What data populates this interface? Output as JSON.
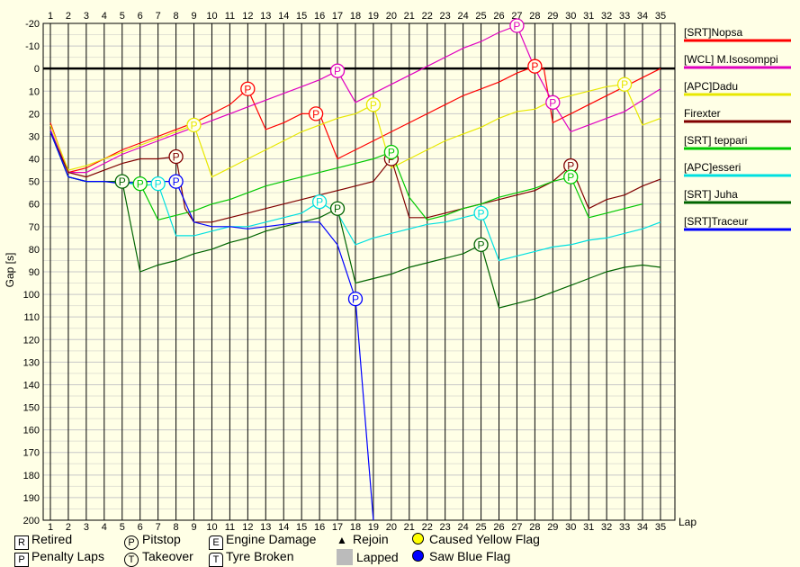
{
  "chart_data": {
    "type": "line",
    "xlabel": "Lap",
    "ylabel": "Gap [s]",
    "x_ticks": [
      1,
      2,
      3,
      4,
      5,
      6,
      7,
      8,
      9,
      10,
      11,
      12,
      13,
      14,
      15,
      16,
      17,
      18,
      19,
      20,
      21,
      22,
      23,
      24,
      25,
      26,
      27,
      28,
      29,
      30,
      31,
      32,
      33,
      34,
      35
    ],
    "y_ticks": [
      -20,
      -10,
      0,
      10,
      20,
      30,
      40,
      50,
      60,
      70,
      80,
      90,
      100,
      110,
      120,
      130,
      140,
      150,
      160,
      170,
      180,
      190,
      200
    ],
    "xlim": [
      0.95,
      35.5
    ],
    "ylim": [
      -20,
      200
    ],
    "y_inverted": true,
    "grid": true,
    "legend_position": "right",
    "reference_line": 0,
    "series": [
      {
        "name": "[SRT]Nopsa",
        "color": "#ff0000",
        "points": [
          [
            1,
            24
          ],
          [
            2,
            46
          ],
          [
            3,
            44
          ],
          [
            4,
            40
          ],
          [
            5,
            36
          ],
          [
            6,
            33
          ],
          [
            7,
            30
          ],
          [
            8,
            27
          ],
          [
            9,
            24
          ],
          [
            10,
            20
          ],
          [
            11,
            16
          ],
          [
            12,
            9
          ],
          [
            13,
            27
          ],
          [
            14,
            24
          ],
          [
            15,
            20
          ],
          [
            16,
            20
          ],
          [
            17,
            40
          ],
          [
            18,
            36
          ],
          [
            19,
            32
          ],
          [
            20,
            28
          ],
          [
            21,
            24
          ],
          [
            22,
            20
          ],
          [
            23,
            16
          ],
          [
            24,
            12
          ],
          [
            25,
            9
          ],
          [
            26,
            6
          ],
          [
            27,
            2
          ],
          [
            28,
            -1
          ],
          [
            28.5,
            0
          ],
          [
            29,
            24
          ],
          [
            30,
            20
          ],
          [
            31,
            16
          ],
          [
            32,
            12
          ],
          [
            33,
            8
          ],
          [
            34,
            4
          ],
          [
            35,
            0
          ]
        ],
        "pitstops": [
          12,
          15.8,
          28
        ]
      },
      {
        "name": "[WCL] M.Isosomppi",
        "color": "#e000c0",
        "points": [
          [
            1,
            27
          ],
          [
            2,
            46
          ],
          [
            3,
            46
          ],
          [
            4,
            42
          ],
          [
            5,
            38
          ],
          [
            6,
            35
          ],
          [
            7,
            32
          ],
          [
            8,
            29
          ],
          [
            9,
            26
          ],
          [
            10,
            23
          ],
          [
            11,
            20
          ],
          [
            12,
            17
          ],
          [
            13,
            14
          ],
          [
            14,
            11
          ],
          [
            15,
            8
          ],
          [
            16,
            5
          ],
          [
            17,
            1
          ],
          [
            18,
            15
          ],
          [
            19,
            11
          ],
          [
            20,
            7
          ],
          [
            21,
            3
          ],
          [
            22,
            -1
          ],
          [
            23,
            -5
          ],
          [
            24,
            -9
          ],
          [
            25,
            -12
          ],
          [
            26,
            -16
          ],
          [
            27,
            -19
          ],
          [
            28,
            0
          ],
          [
            29,
            15
          ],
          [
            30,
            28
          ],
          [
            31,
            25
          ],
          [
            32,
            22
          ],
          [
            33,
            19
          ],
          [
            34,
            14
          ],
          [
            35,
            9
          ]
        ],
        "pitstops": [
          17,
          27,
          29
        ]
      },
      {
        "name": "[APC]Dadu",
        "color": "#e8e800",
        "points": [
          [
            1,
            25
          ],
          [
            2,
            45
          ],
          [
            3,
            43
          ],
          [
            4,
            40
          ],
          [
            5,
            37
          ],
          [
            6,
            34
          ],
          [
            7,
            31
          ],
          [
            8,
            28
          ],
          [
            9,
            25
          ],
          [
            10,
            48
          ],
          [
            11,
            44
          ],
          [
            12,
            40
          ],
          [
            13,
            36
          ],
          [
            14,
            32
          ],
          [
            15,
            28
          ],
          [
            16,
            25
          ],
          [
            17,
            22
          ],
          [
            18,
            20
          ],
          [
            19,
            16
          ],
          [
            20,
            44
          ],
          [
            21,
            40
          ],
          [
            22,
            36
          ],
          [
            23,
            32
          ],
          [
            24,
            29
          ],
          [
            25,
            26
          ],
          [
            26,
            22
          ],
          [
            27,
            19
          ],
          [
            28,
            18
          ],
          [
            29,
            14
          ],
          [
            30,
            12
          ],
          [
            31,
            10
          ],
          [
            32,
            8
          ],
          [
            33,
            7
          ],
          [
            34,
            25
          ],
          [
            35,
            22
          ]
        ],
        "pitstops": [
          9,
          19,
          33
        ]
      },
      {
        "name": "Firexter",
        "color": "#800000",
        "points": [
          [
            1,
            28
          ],
          [
            2,
            46
          ],
          [
            3,
            48
          ],
          [
            4,
            45
          ],
          [
            5,
            42
          ],
          [
            6,
            40
          ],
          [
            7,
            40
          ],
          [
            8,
            39
          ],
          [
            8.5,
            62
          ],
          [
            9,
            68
          ],
          [
            10,
            68
          ],
          [
            11,
            66
          ],
          [
            12,
            64
          ],
          [
            13,
            62
          ],
          [
            14,
            60
          ],
          [
            15,
            58
          ],
          [
            16,
            56
          ],
          [
            17,
            54
          ],
          [
            18,
            52
          ],
          [
            19,
            50
          ],
          [
            20,
            40
          ],
          [
            21,
            66
          ],
          [
            22,
            66
          ],
          [
            23,
            64
          ],
          [
            24,
            62
          ],
          [
            25,
            60
          ],
          [
            26,
            58
          ],
          [
            27,
            56
          ],
          [
            28,
            54
          ],
          [
            29,
            50
          ],
          [
            30,
            43
          ],
          [
            31,
            62
          ],
          [
            32,
            58
          ],
          [
            33,
            56
          ],
          [
            34,
            52
          ],
          [
            35,
            49
          ]
        ],
        "pitstops": [
          8,
          20,
          30
        ]
      },
      {
        "name": "[SRT] teppari",
        "color": "#00c800",
        "points": [
          [
            1,
            28
          ],
          [
            2,
            48
          ],
          [
            3,
            50
          ],
          [
            4,
            50
          ],
          [
            5,
            50
          ],
          [
            6,
            51
          ],
          [
            7,
            67
          ],
          [
            8,
            65
          ],
          [
            9,
            63
          ],
          [
            10,
            60
          ],
          [
            11,
            58
          ],
          [
            12,
            55
          ],
          [
            13,
            52
          ],
          [
            14,
            50
          ],
          [
            15,
            48
          ],
          [
            16,
            46
          ],
          [
            17,
            44
          ],
          [
            18,
            42
          ],
          [
            19,
            40
          ],
          [
            20,
            37
          ],
          [
            21,
            57
          ],
          [
            22,
            67
          ],
          [
            23,
            65
          ],
          [
            24,
            62
          ],
          [
            25,
            60
          ],
          [
            26,
            57
          ],
          [
            27,
            55
          ],
          [
            28,
            53
          ],
          [
            29,
            50
          ],
          [
            30,
            48
          ],
          [
            31,
            66
          ],
          [
            32,
            64
          ],
          [
            33,
            62
          ],
          [
            34,
            60
          ]
        ],
        "pitstops": [
          6,
          20,
          30
        ]
      },
      {
        "name": "[APC]esseri",
        "color": "#00e0e0",
        "points": [
          [
            1,
            28
          ],
          [
            2,
            48
          ],
          [
            3,
            50
          ],
          [
            4,
            50
          ],
          [
            5,
            50
          ],
          [
            6,
            52
          ],
          [
            7,
            51
          ],
          [
            8,
            74
          ],
          [
            9,
            74
          ],
          [
            10,
            72
          ],
          [
            11,
            70
          ],
          [
            12,
            70
          ],
          [
            13,
            68
          ],
          [
            14,
            66
          ],
          [
            15,
            64
          ],
          [
            16,
            59
          ],
          [
            17,
            64
          ],
          [
            18,
            78
          ],
          [
            19,
            75
          ],
          [
            20,
            73
          ],
          [
            21,
            71
          ],
          [
            22,
            69
          ],
          [
            23,
            68
          ],
          [
            24,
            66
          ],
          [
            25,
            64
          ],
          [
            26,
            85
          ],
          [
            27,
            83
          ],
          [
            28,
            81
          ],
          [
            29,
            79
          ],
          [
            30,
            78
          ],
          [
            31,
            76
          ],
          [
            32,
            75
          ],
          [
            33,
            73
          ],
          [
            34,
            71
          ],
          [
            35,
            68
          ]
        ],
        "pitstops": [
          7,
          16,
          25
        ]
      },
      {
        "name": "[SRT] Juha",
        "color": "#006400",
        "points": [
          [
            1,
            28
          ],
          [
            2,
            48
          ],
          [
            3,
            50
          ],
          [
            4,
            50
          ],
          [
            5,
            50
          ],
          [
            6,
            90
          ],
          [
            7,
            87
          ],
          [
            8,
            85
          ],
          [
            9,
            82
          ],
          [
            10,
            80
          ],
          [
            11,
            77
          ],
          [
            12,
            75
          ],
          [
            13,
            72
          ],
          [
            14,
            70
          ],
          [
            15,
            68
          ],
          [
            16,
            66
          ],
          [
            17,
            62
          ],
          [
            18,
            95
          ],
          [
            19,
            93
          ],
          [
            20,
            91
          ],
          [
            21,
            88
          ],
          [
            22,
            86
          ],
          [
            23,
            84
          ],
          [
            24,
            82
          ],
          [
            25,
            78
          ],
          [
            26,
            106
          ],
          [
            27,
            104
          ],
          [
            28,
            102
          ],
          [
            29,
            99
          ],
          [
            30,
            96
          ],
          [
            31,
            93
          ],
          [
            32,
            90
          ],
          [
            33,
            88
          ],
          [
            34,
            87
          ],
          [
            35,
            88
          ]
        ],
        "pitstops": [
          5,
          17,
          25
        ]
      },
      {
        "name": "[SRT]Traceur",
        "color": "#0000ff",
        "points": [
          [
            1,
            28
          ],
          [
            2,
            48
          ],
          [
            3,
            50
          ],
          [
            4,
            50
          ],
          [
            5,
            51
          ],
          [
            6,
            50
          ],
          [
            7,
            50
          ],
          [
            8,
            50
          ],
          [
            9,
            68
          ],
          [
            10,
            70
          ],
          [
            11,
            70
          ],
          [
            12,
            71
          ],
          [
            13,
            70
          ],
          [
            14,
            69
          ],
          [
            15,
            68
          ],
          [
            16,
            68
          ],
          [
            17,
            78
          ],
          [
            18,
            102
          ],
          [
            19,
            200
          ]
        ],
        "pitstops": [
          8,
          18
        ]
      }
    ]
  },
  "legend_bottom": {
    "retired": "Retired",
    "penalty_laps": "Penalty Laps",
    "pitstop": "Pitstop",
    "takeover": "Takeover",
    "engine_damage": "Engine Damage",
    "tyre_broken": "Tyre Broken",
    "rejoin": "Rejoin",
    "lapped": "Lapped",
    "caused_yellow": "Caused Yellow Flag",
    "saw_blue": "Saw Blue Flag",
    "sym_retired": "R",
    "sym_penalty": "P",
    "sym_pitstop": "P",
    "sym_takeover": "T",
    "sym_engine": "E",
    "sym_tyre": "T",
    "sym_rejoin": "▲"
  }
}
